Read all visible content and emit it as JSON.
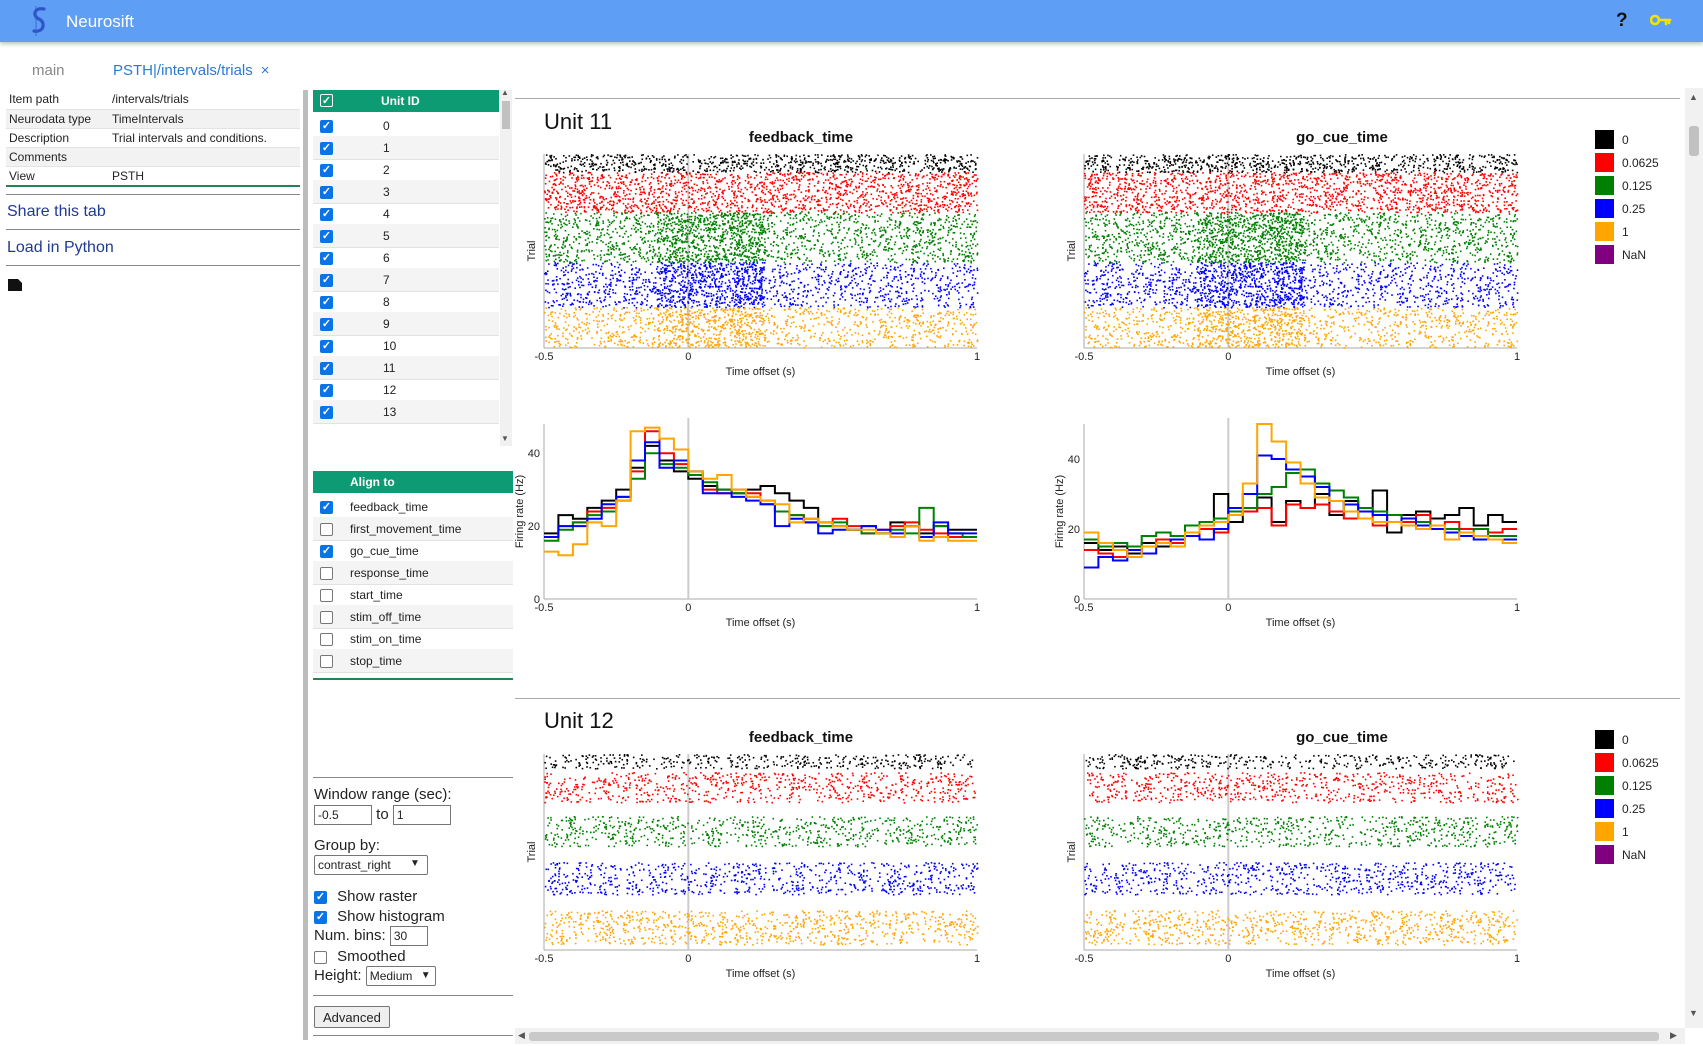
{
  "app": {
    "title": "Neurosift",
    "help_label": "?",
    "colors": {
      "topbar": "#5f9ef5",
      "accent": "#0c9b73",
      "link": "#2a7ad5"
    }
  },
  "tabs": [
    {
      "label": "main"
    },
    {
      "label": "PSTH|/intervals/trials",
      "close": "×"
    }
  ],
  "info": {
    "rows": [
      {
        "key": "Item path",
        "value": "/intervals/trials"
      },
      {
        "key": "Neurodata type",
        "value": "TimeIntervals"
      },
      {
        "key": "Description",
        "value": "Trial intervals and conditions."
      },
      {
        "key": "Comments",
        "value": ""
      },
      {
        "key": "View",
        "value": "PSTH"
      }
    ],
    "share_label": "Share this tab",
    "python_label": "Load in Python"
  },
  "units_table": {
    "header": "Unit ID",
    "units": [
      "0",
      "1",
      "2",
      "3",
      "4",
      "5",
      "6",
      "7",
      "8",
      "9",
      "10",
      "11",
      "12",
      "13"
    ]
  },
  "align": {
    "header": "Align to",
    "items": [
      {
        "label": "feedback_time",
        "checked": true
      },
      {
        "label": "first_movement_time",
        "checked": false
      },
      {
        "label": "go_cue_time",
        "checked": true
      },
      {
        "label": "response_time",
        "checked": false
      },
      {
        "label": "start_time",
        "checked": false
      },
      {
        "label": "stim_off_time",
        "checked": false
      },
      {
        "label": "stim_on_time",
        "checked": false
      },
      {
        "label": "stop_time",
        "checked": false
      }
    ]
  },
  "controls": {
    "window_label": "Window range (sec):",
    "window_start": "-0.5",
    "window_to": "to",
    "window_end": "1",
    "group_label": "Group by:",
    "group_value": "contrast_right",
    "show_raster_label": "Show raster",
    "show_raster": true,
    "show_hist_label": "Show histogram",
    "show_hist": true,
    "bins_label": "Num. bins:",
    "bins_value": "30",
    "smoothed_label": "Smoothed",
    "smoothed": false,
    "height_label": "Height:",
    "height_value": "Medium",
    "advanced_label": "Advanced"
  },
  "plot_labels": {
    "raster_ylabel": "Trial",
    "hist_ylabel": "Firing rate (Hz)",
    "xlabel": "Time offset (s)",
    "x_ticks": [
      "-0.5",
      "0",
      "1"
    ],
    "hist_y_ticks": [
      "0",
      "20",
      "40"
    ]
  },
  "legend": {
    "groups": [
      {
        "label": "0",
        "color": "#000000"
      },
      {
        "label": "0.0625",
        "color": "#ff0000"
      },
      {
        "label": "0.125",
        "color": "#008000"
      },
      {
        "label": "0.25",
        "color": "#0000ff"
      },
      {
        "label": "1",
        "color": "#ffa500"
      },
      {
        "label": "NaN",
        "color": "#800080"
      }
    ]
  },
  "chart_data": [
    {
      "type": "line",
      "title": "feedback_time",
      "unit_title": "Unit 11",
      "xlabel": "Time offset (s)",
      "ylabel": "Firing rate (Hz)",
      "xlim": [
        -0.5,
        1
      ],
      "ylim": [
        0,
        48
      ],
      "x": [
        -0.475,
        -0.425,
        -0.375,
        -0.325,
        -0.275,
        -0.225,
        -0.175,
        -0.125,
        -0.075,
        -0.025,
        0.025,
        0.075,
        0.125,
        0.175,
        0.225,
        0.275,
        0.325,
        0.375,
        0.425,
        0.475,
        0.525,
        0.575,
        0.625,
        0.675,
        0.725,
        0.775,
        0.825,
        0.875,
        0.925,
        0.975
      ],
      "series": [
        {
          "name": "0",
          "values": [
            18,
            23,
            22,
            25,
            27,
            30,
            36,
            42,
            38,
            35,
            33,
            31,
            30,
            29,
            30,
            31,
            29,
            27,
            25,
            21,
            20,
            19,
            20,
            18,
            21,
            20,
            18,
            20,
            19,
            19
          ]
        },
        {
          "name": "0.0625",
          "values": [
            17,
            20,
            21,
            24,
            25,
            28,
            35,
            46,
            40,
            37,
            34,
            30,
            29,
            30,
            29,
            27,
            24,
            23,
            21,
            20,
            22,
            20,
            18,
            19,
            20,
            21,
            19,
            18,
            17,
            17
          ]
        },
        {
          "name": "0.125",
          "values": [
            16,
            19,
            21,
            23,
            24,
            27,
            33,
            40,
            37,
            36,
            34,
            32,
            30,
            29,
            28,
            26,
            24,
            23,
            22,
            20,
            21,
            19,
            18,
            18,
            19,
            18,
            25,
            20,
            18,
            17
          ]
        },
        {
          "name": "0.25",
          "values": [
            17,
            20,
            20,
            22,
            26,
            28,
            38,
            43,
            36,
            38,
            35,
            29,
            29,
            28,
            27,
            26,
            20,
            22,
            21,
            18,
            19,
            19,
            20,
            19,
            18,
            20,
            17,
            21,
            18,
            18
          ]
        },
        {
          "name": "1",
          "values": [
            13,
            12,
            15,
            21,
            20,
            27,
            46,
            47,
            44,
            41,
            35,
            33,
            34,
            30,
            28,
            27,
            26,
            21,
            22,
            21,
            20,
            19,
            19,
            18,
            17,
            20,
            16,
            17,
            16,
            16
          ]
        }
      ]
    },
    {
      "type": "line",
      "title": "go_cue_time",
      "unit_title": "Unit 11",
      "xlabel": "Time offset (s)",
      "ylabel": "Firing rate (Hz)",
      "xlim": [
        -0.5,
        1
      ],
      "ylim": [
        0,
        50
      ],
      "x": [
        -0.475,
        -0.425,
        -0.375,
        -0.325,
        -0.275,
        -0.225,
        -0.175,
        -0.125,
        -0.075,
        -0.025,
        0.025,
        0.075,
        0.125,
        0.175,
        0.225,
        0.275,
        0.325,
        0.375,
        0.425,
        0.475,
        0.525,
        0.575,
        0.625,
        0.675,
        0.725,
        0.775,
        0.825,
        0.875,
        0.925,
        0.975
      ],
      "series": [
        {
          "name": "0",
          "values": [
            16,
            14,
            15,
            13,
            16,
            15,
            17,
            18,
            21,
            30,
            22,
            25,
            29,
            22,
            28,
            26,
            30,
            24,
            28,
            26,
            31,
            19,
            24,
            25,
            23,
            24,
            26,
            21,
            24,
            22
          ]
        },
        {
          "name": "0.0625",
          "values": [
            14,
            13,
            12,
            14,
            15,
            17,
            16,
            18,
            20,
            19,
            24,
            25,
            26,
            21,
            27,
            26,
            27,
            25,
            23,
            26,
            21,
            24,
            22,
            24,
            21,
            22,
            20,
            20,
            19,
            20
          ]
        },
        {
          "name": "0.125",
          "values": [
            17,
            15,
            16,
            15,
            18,
            19,
            18,
            21,
            22,
            23,
            25,
            26,
            30,
            32,
            36,
            37,
            33,
            31,
            29,
            26,
            25,
            24,
            23,
            22,
            20,
            20,
            19,
            20,
            18,
            18
          ]
        },
        {
          "name": "0.25",
          "values": [
            9,
            12,
            11,
            14,
            13,
            16,
            17,
            18,
            17,
            20,
            26,
            30,
            41,
            40,
            37,
            35,
            32,
            28,
            27,
            25,
            24,
            22,
            23,
            21,
            20,
            19,
            18,
            17,
            17,
            17
          ]
        },
        {
          "name": "1",
          "values": [
            19,
            16,
            14,
            12,
            15,
            16,
            15,
            19,
            21,
            22,
            24,
            33,
            50,
            45,
            39,
            33,
            29,
            28,
            25,
            23,
            22,
            22,
            21,
            20,
            21,
            17,
            19,
            18,
            17,
            16
          ]
        }
      ]
    }
  ]
}
